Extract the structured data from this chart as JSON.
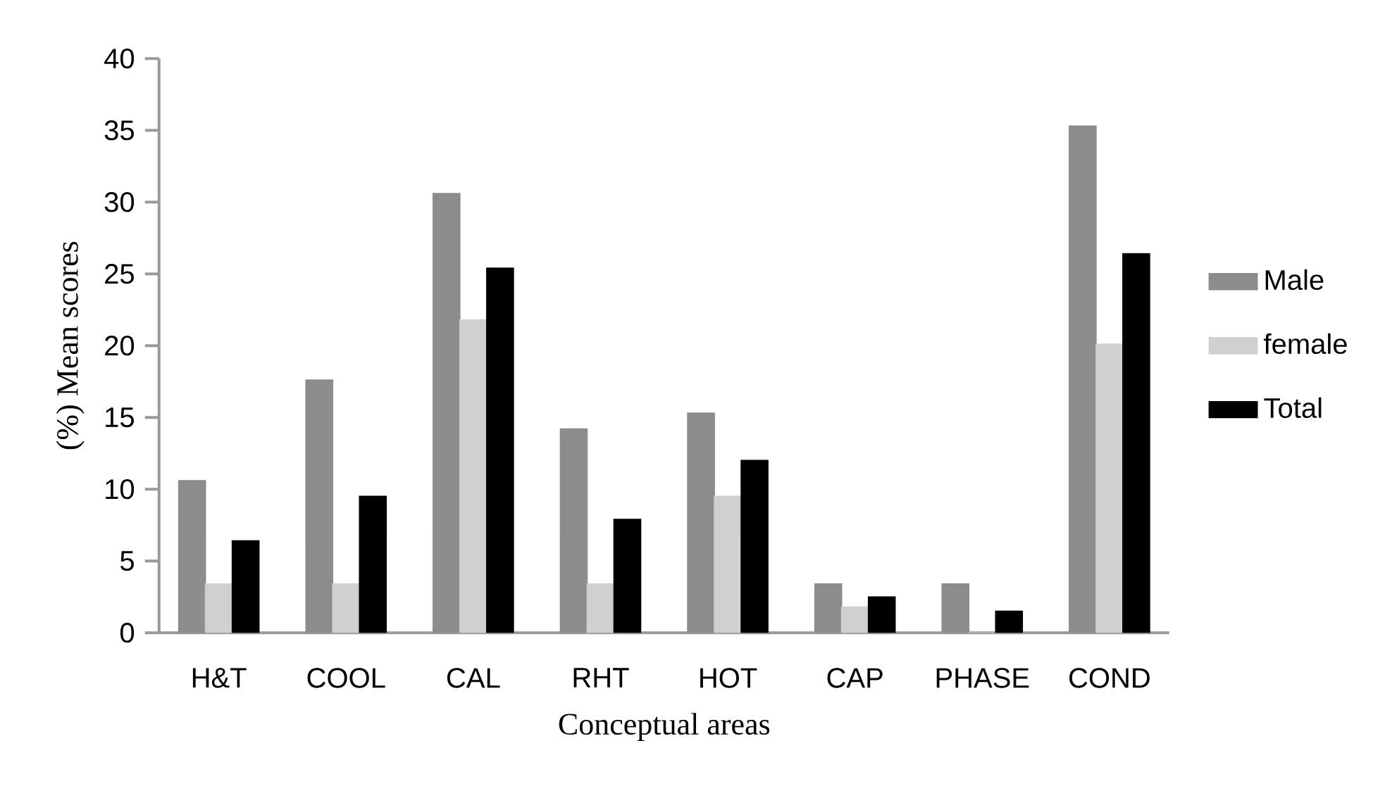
{
  "chart_data": {
    "type": "bar",
    "xlabel": "Conceptual areas",
    "ylabel": "(%) Mean  scores",
    "categories": [
      "H&T",
      "COOL",
      "CAL",
      "RHT",
      "HOT",
      "CAP",
      "PHASE",
      "COND"
    ],
    "series": [
      {
        "name": "Male",
        "color": "#8c8c8c",
        "values": [
          10.6,
          17.6,
          30.6,
          14.2,
          15.3,
          3.4,
          3.4,
          35.3
        ]
      },
      {
        "name": "female",
        "color": "#d0d0d0",
        "values": [
          3.4,
          3.4,
          21.8,
          3.4,
          9.5,
          1.8,
          0,
          20.1
        ]
      },
      {
        "name": "Total",
        "color": "#000000",
        "values": [
          6.4,
          9.5,
          25.4,
          7.9,
          12.0,
          2.5,
          1.5,
          26.4
        ]
      }
    ],
    "ylim": [
      0,
      40
    ],
    "yticks": [
      0,
      5,
      10,
      15,
      20,
      25,
      30,
      35,
      40
    ],
    "grid": false,
    "legend": "right"
  }
}
